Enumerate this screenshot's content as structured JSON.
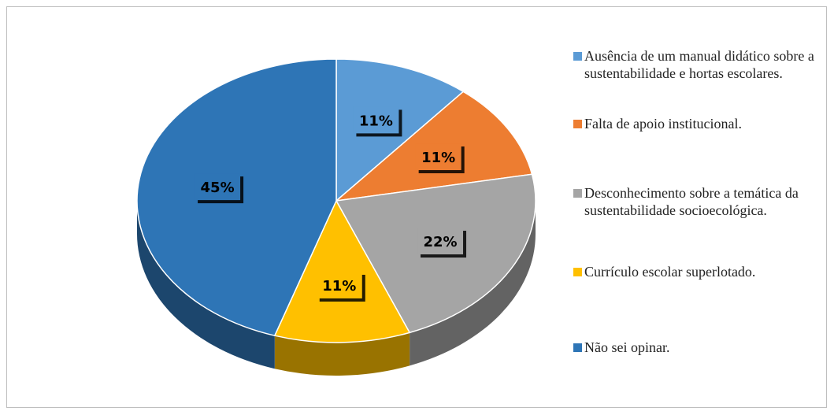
{
  "chart_data": {
    "type": "pie",
    "categories": [
      "Ausência de um manual didático sobre a sustentabilidade e hortas escolares.",
      "Falta de apoio institucional.",
      "Desconhecimento sobre a temática da sustentabilidade socioecológica.",
      "Currículo escolar superlotado.",
      "Não sei opinar."
    ],
    "values": [
      11,
      11,
      22,
      11,
      45
    ],
    "value_labels": [
      "11%",
      "11%",
      "22%",
      "11%",
      "45%"
    ],
    "colors": [
      "#5b9bd5",
      "#ed7d31",
      "#a5a5a5",
      "#ffc000",
      "#2e75b6"
    ],
    "legend": "right"
  }
}
